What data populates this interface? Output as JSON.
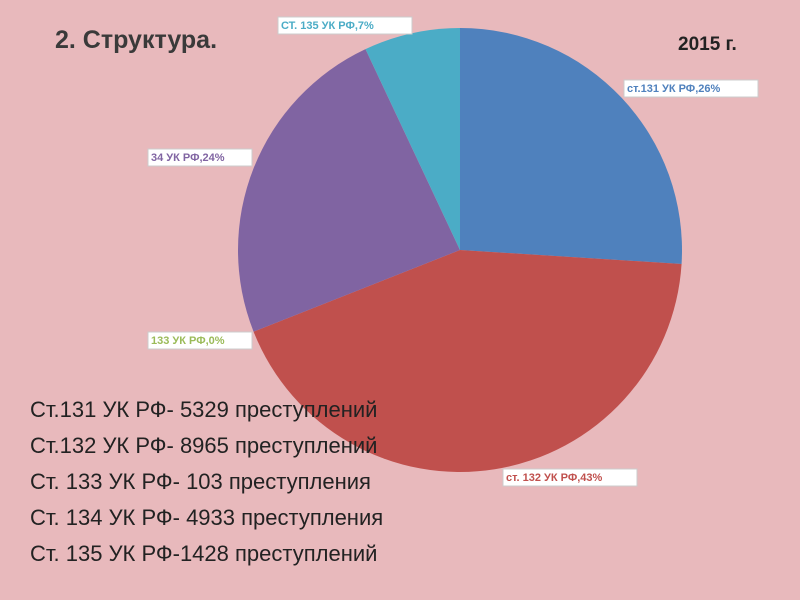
{
  "chart_data": {
    "type": "pie",
    "title": "2. Структура.",
    "annotation": "2015 г.",
    "categories": [
      "ст.131 УК РФ",
      "ст. 132 УК РФ",
      "133 УК РФ",
      "34 УК РФ",
      "СТ. 135 УК РФ"
    ],
    "values": [
      26,
      43,
      0,
      24,
      7
    ],
    "value_labels": [
      "ст.131 УК РФ,26%",
      "ст. 132 УК РФ,43%",
      "133 УК РФ,0%",
      "34 УК РФ,24%",
      "СТ. 135 УК РФ,7%"
    ],
    "colors": [
      "#4f81bd",
      "#c0504d",
      "#9bbb59",
      "#8064a2",
      "#4bacc6"
    ]
  },
  "text_lines": [
    "Ст.131 УК РФ- 5329 преступлений",
    "Ст.132 УК РФ- 8965 преступлений",
    "Ст. 133 УК РФ- 103 преступления",
    "Ст. 134 УК РФ- 4933 преступления",
    "Ст. 135 УК РФ-1428 преступлений"
  ]
}
